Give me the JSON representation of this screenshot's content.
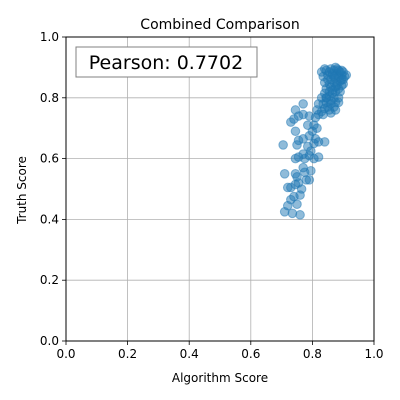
{
  "chart_data": {
    "type": "scatter",
    "title": "Combined Comparison",
    "xlabel": "Algorithm Score",
    "ylabel": "Truth Score",
    "xlim": [
      0.0,
      1.0
    ],
    "ylim": [
      0.0,
      1.0
    ],
    "xticks": [
      "0.0",
      "0.2",
      "0.4",
      "0.6",
      "0.8",
      "1.0"
    ],
    "yticks": [
      "0.0",
      "0.2",
      "0.4",
      "0.6",
      "0.8",
      "1.0"
    ],
    "grid": true,
    "annotation": "Pearson: 0.7702",
    "annotation_placement": "top-left",
    "point_color": "#1f77b4",
    "point_alpha": 0.5,
    "points": [
      [
        0.71,
        0.425
      ],
      [
        0.72,
        0.445
      ],
      [
        0.735,
        0.42
      ],
      [
        0.76,
        0.415
      ],
      [
        0.73,
        0.465
      ],
      [
        0.74,
        0.475
      ],
      [
        0.75,
        0.45
      ],
      [
        0.76,
        0.48
      ],
      [
        0.73,
        0.505
      ],
      [
        0.745,
        0.515
      ],
      [
        0.755,
        0.52
      ],
      [
        0.765,
        0.5
      ],
      [
        0.75,
        0.54
      ],
      [
        0.71,
        0.55
      ],
      [
        0.72,
        0.505
      ],
      [
        0.745,
        0.55
      ],
      [
        0.78,
        0.53
      ],
      [
        0.79,
        0.53
      ],
      [
        0.795,
        0.56
      ],
      [
        0.77,
        0.57
      ],
      [
        0.775,
        0.6
      ],
      [
        0.745,
        0.6
      ],
      [
        0.755,
        0.605
      ],
      [
        0.79,
        0.61
      ],
      [
        0.805,
        0.6
      ],
      [
        0.82,
        0.605
      ],
      [
        0.77,
        0.615
      ],
      [
        0.705,
        0.645
      ],
      [
        0.75,
        0.645
      ],
      [
        0.785,
        0.64
      ],
      [
        0.805,
        0.65
      ],
      [
        0.81,
        0.665
      ],
      [
        0.77,
        0.665
      ],
      [
        0.755,
        0.66
      ],
      [
        0.79,
        0.675
      ],
      [
        0.745,
        0.69
      ],
      [
        0.8,
        0.69
      ],
      [
        0.815,
        0.7
      ],
      [
        0.785,
        0.71
      ],
      [
        0.805,
        0.71
      ],
      [
        0.73,
        0.72
      ],
      [
        0.74,
        0.73
      ],
      [
        0.755,
        0.74
      ],
      [
        0.77,
        0.745
      ],
      [
        0.79,
        0.74
      ],
      [
        0.81,
        0.735
      ],
      [
        0.745,
        0.76
      ],
      [
        0.77,
        0.78
      ],
      [
        0.82,
        0.745
      ],
      [
        0.83,
        0.755
      ],
      [
        0.815,
        0.76
      ],
      [
        0.84,
        0.765
      ],
      [
        0.86,
        0.75
      ],
      [
        0.85,
        0.77
      ],
      [
        0.875,
        0.76
      ],
      [
        0.82,
        0.78
      ],
      [
        0.835,
        0.78
      ],
      [
        0.845,
        0.785
      ],
      [
        0.86,
        0.78
      ],
      [
        0.875,
        0.785
      ],
      [
        0.885,
        0.785
      ],
      [
        0.83,
        0.8
      ],
      [
        0.845,
        0.8
      ],
      [
        0.855,
        0.805
      ],
      [
        0.87,
        0.8
      ],
      [
        0.885,
        0.8
      ],
      [
        0.84,
        0.815
      ],
      [
        0.855,
        0.82
      ],
      [
        0.865,
        0.815
      ],
      [
        0.875,
        0.82
      ],
      [
        0.89,
        0.82
      ],
      [
        0.845,
        0.83
      ],
      [
        0.86,
        0.835
      ],
      [
        0.875,
        0.835
      ],
      [
        0.885,
        0.83
      ],
      [
        0.895,
        0.84
      ],
      [
        0.855,
        0.845
      ],
      [
        0.87,
        0.85
      ],
      [
        0.88,
        0.85
      ],
      [
        0.89,
        0.855
      ],
      [
        0.9,
        0.86
      ],
      [
        0.86,
        0.86
      ],
      [
        0.875,
        0.865
      ],
      [
        0.885,
        0.87
      ],
      [
        0.895,
        0.875
      ],
      [
        0.905,
        0.87
      ],
      [
        0.91,
        0.875
      ],
      [
        0.835,
        0.87
      ],
      [
        0.85,
        0.875
      ],
      [
        0.865,
        0.875
      ],
      [
        0.88,
        0.88
      ],
      [
        0.89,
        0.885
      ],
      [
        0.9,
        0.885
      ],
      [
        0.83,
        0.885
      ],
      [
        0.845,
        0.89
      ],
      [
        0.855,
        0.885
      ],
      [
        0.87,
        0.89
      ],
      [
        0.88,
        0.895
      ],
      [
        0.885,
        0.89
      ],
      [
        0.895,
        0.89
      ],
      [
        0.84,
        0.895
      ],
      [
        0.86,
        0.895
      ],
      [
        0.875,
        0.9
      ],
      [
        0.865,
        0.88
      ],
      [
        0.85,
        0.86
      ],
      [
        0.84,
        0.85
      ],
      [
        0.87,
        0.87
      ],
      [
        0.895,
        0.86
      ],
      [
        0.88,
        0.84
      ],
      [
        0.865,
        0.825
      ],
      [
        0.87,
        0.77
      ],
      [
        0.855,
        0.76
      ],
      [
        0.845,
        0.8
      ],
      [
        0.9,
        0.845
      ],
      [
        0.86,
        0.79
      ],
      [
        0.775,
        0.555
      ],
      [
        0.795,
        0.625
      ],
      [
        0.82,
        0.655
      ],
      [
        0.84,
        0.655
      ],
      [
        0.835,
        0.745
      ]
    ]
  }
}
